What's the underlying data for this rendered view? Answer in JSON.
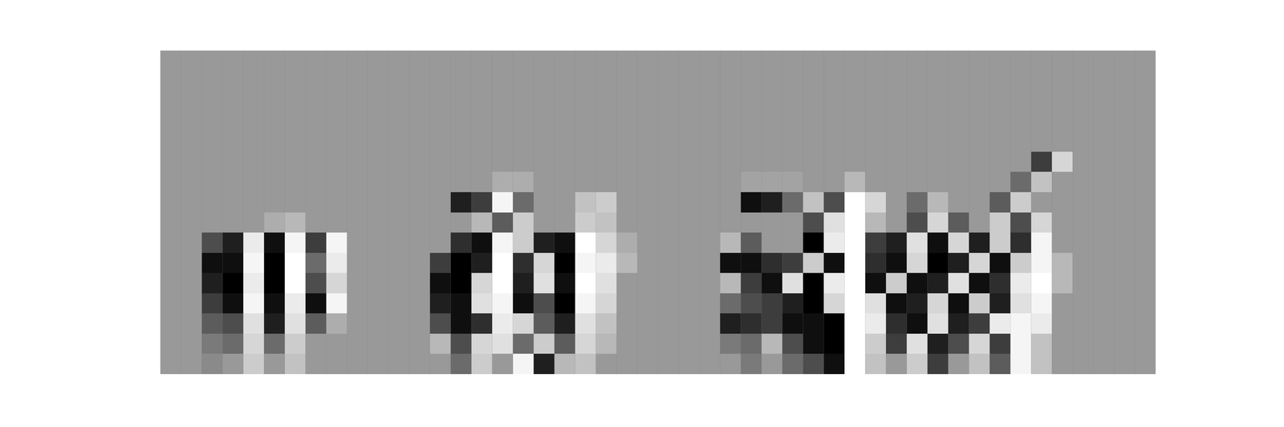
{
  "chart_data": {
    "type": "heatmap",
    "tick_labels": false,
    "zlim": [
      -1,
      1
    ],
    "cells": [
      [
        0,
        0,
        0,
        0,
        0,
        0,
        0,
        0,
        0,
        0,
        0,
        0,
        0,
        0,
        0,
        0,
        0,
        0,
        0,
        0,
        0,
        0,
        0,
        0,
        0,
        0,
        0,
        0,
        0,
        0,
        0,
        0,
        0,
        0,
        0,
        0,
        0,
        0,
        0,
        0,
        0,
        0,
        0,
        0,
        0,
        0,
        0,
        0
      ],
      [
        0,
        0,
        0,
        0,
        0,
        0,
        0,
        0,
        0,
        0,
        0,
        0,
        0,
        0,
        0,
        0,
        0,
        0,
        0,
        0,
        0,
        0,
        0,
        0,
        0,
        0,
        0,
        0,
        0,
        0,
        0,
        0,
        0,
        0,
        0,
        0,
        0,
        0,
        0,
        0,
        0,
        0,
        0,
        0,
        0,
        0,
        0,
        0
      ],
      [
        0,
        0,
        0,
        0,
        0,
        0,
        0,
        0,
        0,
        0,
        0,
        0,
        0,
        0,
        0,
        0,
        0,
        0,
        0,
        0,
        0,
        0,
        0,
        0,
        0,
        0,
        0,
        0,
        0,
        0,
        0,
        0,
        0,
        0,
        0,
        0,
        0,
        0,
        0,
        0,
        0,
        0,
        0,
        0,
        0,
        0,
        0,
        0
      ],
      [
        0,
        0,
        0,
        0,
        0,
        0,
        0,
        0,
        0,
        0,
        0,
        0,
        0,
        0,
        0,
        0,
        0,
        0,
        0,
        0,
        0,
        0,
        0,
        0,
        0,
        0,
        0,
        0,
        0,
        0,
        0,
        0,
        0,
        0,
        0,
        0,
        0,
        0,
        0,
        0,
        0,
        0,
        0,
        0,
        0,
        0,
        0,
        0
      ],
      [
        0,
        0,
        0,
        0,
        0,
        0,
        0,
        0,
        0,
        0,
        0,
        0,
        0,
        0,
        0,
        0,
        0,
        0,
        0,
        0,
        0,
        0,
        0,
        0,
        0,
        0,
        0,
        0,
        0,
        0,
        0,
        0,
        0,
        0,
        0,
        0,
        0,
        0,
        0,
        0,
        0,
        0,
        0,
        0,
        0,
        0,
        0,
        0
      ],
      [
        0,
        0,
        0,
        0,
        0,
        0,
        0,
        0,
        0,
        0,
        0,
        0,
        0,
        0,
        0,
        0,
        0,
        0,
        0,
        0,
        0,
        0,
        0,
        0,
        0,
        0,
        0,
        0,
        0,
        0,
        0,
        0,
        0,
        0,
        0,
        0,
        0,
        0,
        0,
        0,
        0,
        0,
        -0.6,
        0.6,
        0,
        0,
        0,
        0
      ],
      [
        0,
        0,
        0,
        0,
        0,
        0,
        0,
        0,
        0,
        0,
        0,
        0,
        0,
        0,
        0,
        0,
        0.2,
        0.2,
        0,
        0,
        0,
        0,
        0,
        0,
        0,
        0,
        0,
        0,
        0.1,
        0.1,
        0.1,
        0,
        0,
        0.3,
        0,
        0,
        0,
        0,
        0,
        0,
        0,
        -0.3,
        0.4,
        0,
        0,
        0,
        0,
        0
      ],
      [
        0,
        0,
        0,
        0,
        0,
        0,
        0,
        0,
        0,
        0,
        0,
        0,
        0,
        0,
        -0.8,
        -0.6,
        0.9,
        -0.3,
        0,
        0,
        0.4,
        0.5,
        0,
        0,
        0,
        0,
        0,
        0,
        -0.9,
        -0.8,
        -0.3,
        0.4,
        -0.5,
        1,
        0.6,
        0,
        -0.3,
        0.3,
        0,
        0,
        -0.4,
        0.5,
        0,
        0,
        0,
        0,
        0,
        0
      ],
      [
        0,
        0,
        0,
        0,
        0,
        0.2,
        0.3,
        0,
        0,
        0,
        0,
        0,
        0,
        0,
        0,
        0.3,
        -0.4,
        0.5,
        0,
        0,
        0.5,
        0.4,
        0,
        0,
        0,
        0,
        0,
        0,
        0,
        0,
        0,
        -0.5,
        0.7,
        1,
        0.3,
        0,
        -0.5,
        0.6,
        -0.4,
        0,
        0.5,
        -0.5,
        0.6,
        0,
        0,
        0,
        0,
        0
      ],
      [
        0,
        0,
        -0.5,
        -0.8,
        0.8,
        -0.9,
        0.9,
        -0.6,
        0.9,
        0,
        0,
        0,
        0,
        0,
        -0.7,
        -0.9,
        0.9,
        0.5,
        -0.8,
        -0.9,
        1,
        0.6,
        0.2,
        0,
        0,
        0,
        0,
        0.3,
        -0.4,
        0,
        0,
        -1,
        0.8,
        1,
        -0.6,
        -0.8,
        0.7,
        -0.9,
        0.6,
        -0.8,
        0.5,
        -0.7,
        0.9,
        0,
        0,
        0,
        0,
        0
      ],
      [
        0,
        0,
        -0.9,
        -0.9,
        0.9,
        -1,
        1,
        -0.3,
        0.8,
        0,
        0,
        0,
        0,
        -0.6,
        -1,
        -0.8,
        1,
        -0.7,
        0.6,
        -1,
        0.9,
        0.8,
        0.3,
        0,
        0,
        0,
        0,
        -0.9,
        -0.9,
        -0.7,
        -0.6,
        0.5,
        -0.9,
        1,
        -0.7,
        -0.9,
        0.6,
        -1,
        -0.8,
        0.6,
        -0.9,
        0.5,
        0.9,
        0.3,
        0,
        0,
        0,
        0
      ],
      [
        0,
        0,
        -0.8,
        -1,
        0.8,
        -1,
        1,
        -0.5,
        0.6,
        0,
        0,
        0,
        0,
        -0.9,
        -1,
        0.6,
        1,
        -0.8,
        0.7,
        -0.9,
        1,
        0.7,
        0,
        0,
        0,
        0,
        0,
        0.3,
        -0.6,
        -0.9,
        0.7,
        -1,
        0.8,
        1,
        -0.9,
        0.5,
        -0.9,
        -0.8,
        0.7,
        -0.9,
        -0.7,
        0.8,
        1,
        0.3,
        0,
        0,
        0,
        0
      ],
      [
        0,
        0,
        -0.6,
        -0.9,
        0.9,
        -0.9,
        0.8,
        -0.9,
        0.9,
        0,
        0,
        0,
        0,
        -0.8,
        -0.9,
        0.7,
        0.9,
        -0.9,
        -0.5,
        -1,
        0.9,
        0.6,
        0,
        0,
        0,
        0,
        0,
        -0.3,
        -0.5,
        -0.6,
        -0.8,
        -1,
        0.6,
        1,
        0.7,
        -0.9,
        -0.8,
        0.6,
        -0.9,
        0.5,
        -0.8,
        0.7,
        0.9,
        0,
        0,
        0,
        0,
        0
      ],
      [
        0,
        0,
        -0.4,
        -0.5,
        0.7,
        -0.8,
        0.7,
        -0.4,
        0.2,
        0,
        0,
        0,
        0,
        -0.5,
        -0.9,
        -0.7,
        0.8,
        0.6,
        -0.4,
        -0.8,
        0.7,
        0.4,
        0,
        0,
        0,
        0,
        0,
        -0.8,
        -0.7,
        -0.6,
        -0.9,
        -0.9,
        -1,
        1,
        0.8,
        -0.7,
        -0.9,
        0.7,
        -0.8,
        -0.6,
        0.8,
        0.9,
        0.8,
        0,
        0,
        0,
        0,
        0
      ],
      [
        0,
        0,
        -0.2,
        -0.3,
        0.6,
        -0.3,
        0.5,
        0,
        0,
        0,
        0,
        0,
        0,
        0.3,
        -0.5,
        0.6,
        0.7,
        -0.3,
        0.5,
        -0.4,
        0.6,
        0.3,
        0,
        0,
        0,
        0,
        0,
        -0.2,
        -0.3,
        0.3,
        -0.5,
        -0.9,
        -1,
        1,
        0.5,
        -0.6,
        0.7,
        -0.8,
        -0.5,
        0.6,
        -0.6,
        0.9,
        0.4,
        0,
        0,
        0,
        0,
        0
      ],
      [
        0,
        0,
        -0.1,
        0,
        0.5,
        0,
        0.4,
        0,
        0,
        0,
        0,
        0,
        0,
        0,
        -0.3,
        0.5,
        0,
        0.9,
        -0.8,
        0.3,
        0.4,
        0,
        0,
        0,
        0,
        0,
        0,
        0,
        -0.2,
        0,
        -0.3,
        -0.5,
        -0.9,
        1,
        0.4,
        0,
        0.5,
        -0.6,
        0,
        0.4,
        -0.4,
        0.9,
        0.4,
        0,
        0,
        0,
        0,
        0
      ]
    ]
  }
}
